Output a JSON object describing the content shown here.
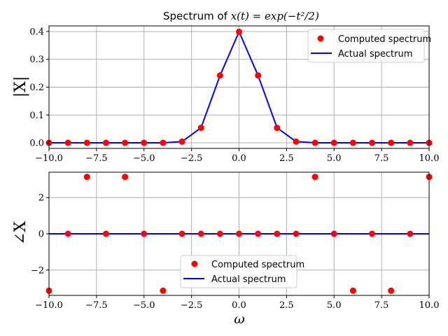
{
  "chart_data": [
    {
      "type": "scatter",
      "title_prefix": "Spectrum of ",
      "title_math": "x(t) = exp(−t²/2)",
      "xlabel": "",
      "ylabel": "|X|",
      "xlim": [
        -10,
        10
      ],
      "ylim": [
        -0.02,
        0.42
      ],
      "x_ticks": [
        -10.0,
        -7.5,
        -5.0,
        -2.5,
        0.0,
        2.5,
        5.0,
        7.5,
        10.0
      ],
      "x_tick_labels": [
        "−10.0",
        "−7.5",
        "−5.0",
        "−2.5",
        "0.0",
        "2.5",
        "5.0",
        "7.5",
        "10.0"
      ],
      "y_ticks": [
        0.0,
        0.1,
        0.2,
        0.3,
        0.4
      ],
      "y_tick_labels": [
        "0.0",
        "0.1",
        "0.2",
        "0.3",
        "0.4"
      ],
      "grid": true,
      "legend_position": "top-right",
      "series": [
        {
          "name": "Computed spectrum",
          "style": "markers",
          "color": "#ff0000",
          "x": [
            -10,
            -9,
            -8,
            -7,
            -6,
            -5,
            -4,
            -3,
            -2,
            -1,
            0,
            1,
            2,
            3,
            4,
            5,
            6,
            7,
            8,
            9,
            10
          ],
          "values": [
            0,
            0,
            0,
            0,
            0,
            0,
            0.0001,
            0.0044,
            0.054,
            0.242,
            0.3989,
            0.242,
            0.054,
            0.0044,
            0.0001,
            0,
            0,
            0,
            0,
            0,
            0
          ]
        },
        {
          "name": "Actual spectrum",
          "style": "line",
          "color": "#0000ff",
          "x": [
            -10,
            -9,
            -8,
            -7,
            -6,
            -5,
            -4,
            -3,
            -2,
            -1,
            0,
            1,
            2,
            3,
            4,
            5,
            6,
            7,
            8,
            9,
            10
          ],
          "values": [
            0,
            0,
            0,
            0,
            0,
            0,
            0.0001,
            0.0044,
            0.054,
            0.242,
            0.3989,
            0.242,
            0.054,
            0.0044,
            0.0001,
            0,
            0,
            0,
            0,
            0,
            0
          ]
        }
      ]
    },
    {
      "type": "scatter",
      "title": "",
      "xlabel": "ω",
      "ylabel": "∠X",
      "xlim": [
        -10,
        10
      ],
      "ylim": [
        -3.4,
        3.4
      ],
      "x_ticks": [
        -10.0,
        -7.5,
        -5.0,
        -2.5,
        0.0,
        2.5,
        5.0,
        7.5,
        10.0
      ],
      "x_tick_labels": [
        "−10.0",
        "−7.5",
        "−5.0",
        "−2.5",
        "0.0",
        "2.5",
        "5.0",
        "7.5",
        "10.0"
      ],
      "y_ticks": [
        -2,
        0,
        2
      ],
      "y_tick_labels": [
        "−2",
        "0",
        "2"
      ],
      "grid": true,
      "legend_position": "lower-center",
      "series": [
        {
          "name": "Computed spectrum",
          "style": "markers",
          "color": "#ff0000",
          "x": [
            -10,
            -9,
            -8,
            -7,
            -6,
            -5,
            -4,
            -3,
            -2,
            -1,
            0,
            1,
            2,
            3,
            4,
            5,
            6,
            7,
            8,
            9,
            10
          ],
          "values": [
            -3.1416,
            0,
            3.1416,
            0,
            3.1416,
            0,
            -3.1416,
            0,
            0,
            0,
            0,
            0,
            0,
            0,
            3.1416,
            0,
            -3.1416,
            0,
            -3.1416,
            0,
            3.1416
          ]
        },
        {
          "name": "Actual spectrum",
          "style": "line",
          "color": "#0000ff",
          "x": [
            -10,
            10
          ],
          "values": [
            0,
            0
          ]
        }
      ]
    }
  ]
}
